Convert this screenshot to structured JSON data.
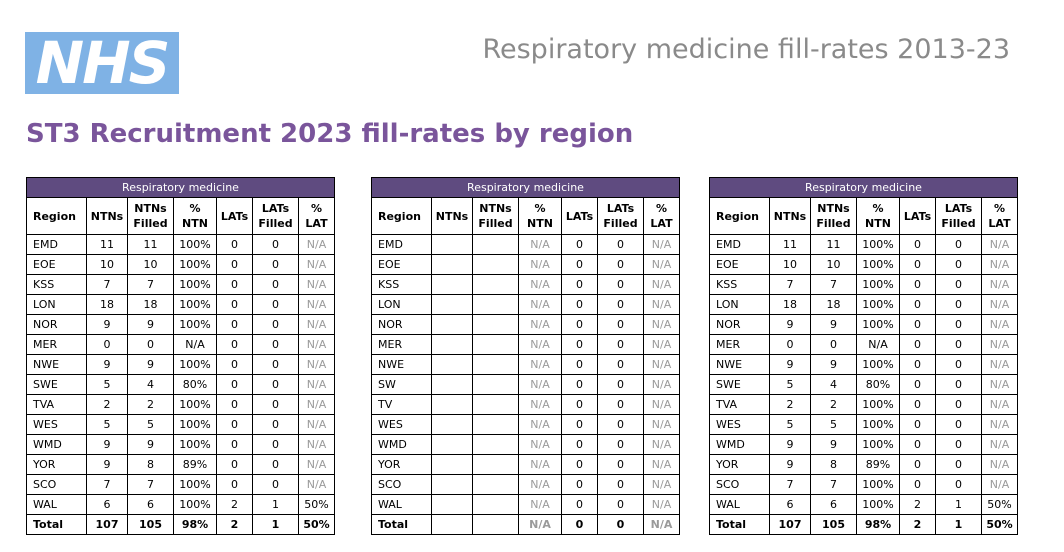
{
  "header": {
    "logo_text": "NHS",
    "doc_title": "Respiratory medicine fill-rates 2013-23",
    "heading": "ST3 Recruitment 2023 fill-rates by region"
  },
  "colors": {
    "logo_bg": "#7fb2e5",
    "heading": "#7a559b",
    "table_header_bg": "#5f4b80",
    "na_text": "#9a9a9a"
  },
  "tables": [
    {
      "group_label": "Respiratory medicine",
      "columns": [
        "Region",
        "NTNs",
        "NTNs\nFilled",
        "%\nNTN",
        "LATs",
        "LATs\nFilled",
        "%\nLAT"
      ],
      "rows": [
        [
          "EMD",
          "11",
          "11",
          "100%",
          "0",
          "0",
          "N/A"
        ],
        [
          "EOE",
          "10",
          "10",
          "100%",
          "0",
          "0",
          "N/A"
        ],
        [
          "KSS",
          "7",
          "7",
          "100%",
          "0",
          "0",
          "N/A"
        ],
        [
          "LON",
          "18",
          "18",
          "100%",
          "0",
          "0",
          "N/A"
        ],
        [
          "NOR",
          "9",
          "9",
          "100%",
          "0",
          "0",
          "N/A"
        ],
        [
          "MER",
          "0",
          "0",
          "N/A",
          "0",
          "0",
          "N/A"
        ],
        [
          "NWE",
          "9",
          "9",
          "100%",
          "0",
          "0",
          "N/A"
        ],
        [
          "SWE",
          "5",
          "4",
          "80%",
          "0",
          "0",
          "N/A"
        ],
        [
          "TVA",
          "2",
          "2",
          "100%",
          "0",
          "0",
          "N/A"
        ],
        [
          "WES",
          "5",
          "5",
          "100%",
          "0",
          "0",
          "N/A"
        ],
        [
          "WMD",
          "9",
          "9",
          "100%",
          "0",
          "0",
          "N/A"
        ],
        [
          "YOR",
          "9",
          "8",
          "89%",
          "0",
          "0",
          "N/A"
        ],
        [
          "SCO",
          "7",
          "7",
          "100%",
          "0",
          "0",
          "N/A"
        ],
        [
          "WAL",
          "6",
          "6",
          "100%",
          "2",
          "1",
          "50%"
        ]
      ],
      "total": [
        "Total",
        "107",
        "105",
        "98%",
        "2",
        "1",
        "50%"
      ]
    },
    {
      "group_label": "Respiratory medicine",
      "columns": [
        "Region",
        "NTNs",
        "NTNs\nFilled",
        "%\nNTN",
        "LATs",
        "LATs\nFilled",
        "%\nLAT"
      ],
      "rows": [
        [
          "EMD",
          "",
          "",
          "N/A",
          "0",
          "0",
          "N/A"
        ],
        [
          "EOE",
          "",
          "",
          "N/A",
          "0",
          "0",
          "N/A"
        ],
        [
          "KSS",
          "",
          "",
          "N/A",
          "0",
          "0",
          "N/A"
        ],
        [
          "LON",
          "",
          "",
          "N/A",
          "0",
          "0",
          "N/A"
        ],
        [
          "NOR",
          "",
          "",
          "N/A",
          "0",
          "0",
          "N/A"
        ],
        [
          "MER",
          "",
          "",
          "N/A",
          "0",
          "0",
          "N/A"
        ],
        [
          "NWE",
          "",
          "",
          "N/A",
          "0",
          "0",
          "N/A"
        ],
        [
          "SW",
          "",
          "",
          "N/A",
          "0",
          "0",
          "N/A"
        ],
        [
          "TV",
          "",
          "",
          "N/A",
          "0",
          "0",
          "N/A"
        ],
        [
          "WES",
          "",
          "",
          "N/A",
          "0",
          "0",
          "N/A"
        ],
        [
          "WMD",
          "",
          "",
          "N/A",
          "0",
          "0",
          "N/A"
        ],
        [
          "YOR",
          "",
          "",
          "N/A",
          "0",
          "0",
          "N/A"
        ],
        [
          "SCO",
          "",
          "",
          "N/A",
          "0",
          "0",
          "N/A"
        ],
        [
          "WAL",
          "",
          "",
          "N/A",
          "0",
          "0",
          "N/A"
        ]
      ],
      "total": [
        "Total",
        "",
        "",
        "N/A",
        "0",
        "0",
        "N/A"
      ]
    },
    {
      "group_label": "Respiratory medicine",
      "columns": [
        "Region",
        "NTNs",
        "NTNs\nFilled",
        "%\nNTN",
        "LATs",
        "LATs\nFilled",
        "%\nLAT"
      ],
      "rows": [
        [
          "EMD",
          "11",
          "11",
          "100%",
          "0",
          "0",
          "N/A"
        ],
        [
          "EOE",
          "10",
          "10",
          "100%",
          "0",
          "0",
          "N/A"
        ],
        [
          "KSS",
          "7",
          "7",
          "100%",
          "0",
          "0",
          "N/A"
        ],
        [
          "LON",
          "18",
          "18",
          "100%",
          "0",
          "0",
          "N/A"
        ],
        [
          "NOR",
          "9",
          "9",
          "100%",
          "0",
          "0",
          "N/A"
        ],
        [
          "MER",
          "0",
          "0",
          "N/A",
          "0",
          "0",
          "N/A"
        ],
        [
          "NWE",
          "9",
          "9",
          "100%",
          "0",
          "0",
          "N/A"
        ],
        [
          "SWE",
          "5",
          "4",
          "80%",
          "0",
          "0",
          "N/A"
        ],
        [
          "TVA",
          "2",
          "2",
          "100%",
          "0",
          "0",
          "N/A"
        ],
        [
          "WES",
          "5",
          "5",
          "100%",
          "0",
          "0",
          "N/A"
        ],
        [
          "WMD",
          "9",
          "9",
          "100%",
          "0",
          "0",
          "N/A"
        ],
        [
          "YOR",
          "9",
          "8",
          "89%",
          "0",
          "0",
          "N/A"
        ],
        [
          "SCO",
          "7",
          "7",
          "100%",
          "0",
          "0",
          "N/A"
        ],
        [
          "WAL",
          "6",
          "6",
          "100%",
          "2",
          "1",
          "50%"
        ]
      ],
      "total": [
        "Total",
        "107",
        "105",
        "98%",
        "2",
        "1",
        "50%"
      ]
    }
  ]
}
